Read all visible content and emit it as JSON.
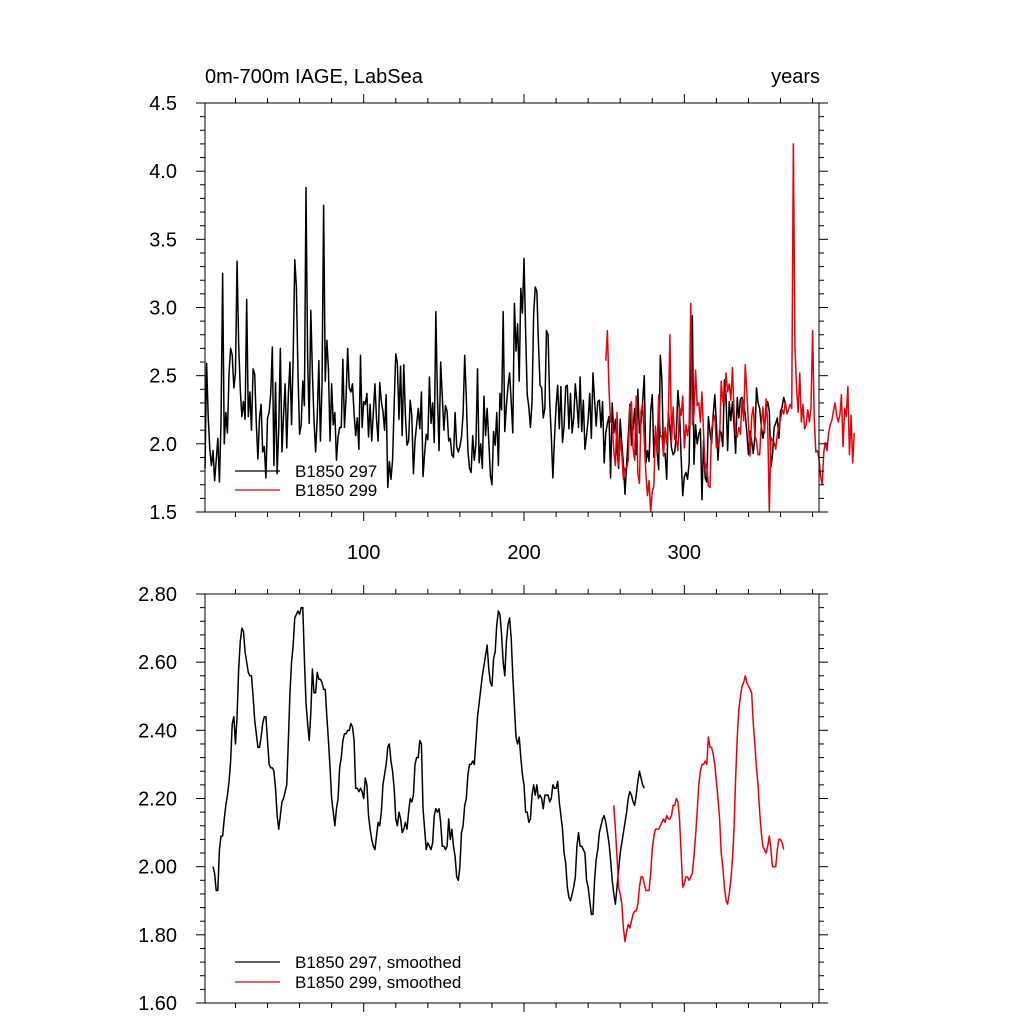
{
  "colors": {
    "run297": "#000000",
    "run299": "#e8000b",
    "frame": "#000000",
    "background": "#ffffff"
  },
  "chart_data": [
    {
      "type": "line",
      "title_left": "0m-700m IAGE, LabSea",
      "title_right": "years",
      "xlim": [
        1,
        384
      ],
      "ylim": [
        1.5,
        4.5
      ],
      "x_ticks": [
        100,
        200,
        300
      ],
      "x_tick_labels": [
        "100",
        "200",
        "300"
      ],
      "y_ticks": [
        1.5,
        2.0,
        2.5,
        3.0,
        3.5,
        4.0,
        4.5
      ],
      "y_tick_labels": [
        "1.5",
        "2.0",
        "2.5",
        "3.0",
        "3.5",
        "4.0",
        "4.5"
      ],
      "legend_position": "bottom-left",
      "series": [
        {
          "name": "B1850 297",
          "color": "#000000",
          "x_start": 1,
          "values": [
            1.82,
            2.59,
            2.2,
            1.96,
            1.84,
            1.95,
            1.73,
            1.88,
            2.04,
            1.72,
            2.17,
            3.25,
            2.0,
            2.23,
            2.08,
            2.52,
            2.7,
            2.65,
            2.41,
            2.52,
            3.34,
            2.73,
            2.4,
            2.2,
            2.31,
            2.18,
            3.06,
            2.2,
            2.38,
            2.1,
            2.55,
            2.51,
            2.15,
            1.89,
            2.19,
            2.29,
            1.94,
            1.98,
            1.75,
            2.19,
            2.23,
            2.37,
            2.71,
            1.84,
            2.45,
            1.78,
            2.11,
            2.7,
            1.94,
            2.21,
            2.44,
            1.97,
            2.36,
            2.6,
            2.14,
            2.64,
            3.35,
            3.15,
            2.52,
            2.07,
            2.14,
            2.46,
            2.28,
            3.88,
            2.63,
            2.15,
            2.98,
            2.52,
            2.17,
            1.94,
            2.19,
            2.61,
            2.02,
            2.44,
            3.75,
            2.46,
            2.76,
            2.55,
            2.02,
            2.44,
            2.14,
            2.23,
            1.88,
            2.05,
            2.12,
            2.12,
            2.62,
            2.12,
            2.34,
            2.7,
            2.41,
            2.38,
            2.44,
            2.22,
            2.06,
            2.19,
            1.96,
            2.65,
            2.12,
            2.31,
            2.29,
            2.37,
            2.05,
            2.29,
            2.02,
            2.23,
            2.44,
            2.18,
            2.02,
            2.45,
            2.31,
            2.24,
            2.1,
            2.36,
            1.68,
            1.87,
            1.74,
            1.88,
            2.29,
            2.66,
            2.59,
            2.18,
            2.57,
            2.06,
            2.58,
            2.21,
            1.99,
            2.02,
            2.32,
            2.21,
            1.78,
            2.02,
            2.14,
            2.26,
            2.11,
            2.38,
            1.76,
            1.93,
            2.07,
            2.03,
            2.49,
            2.15,
            2.3,
            2.01,
            2.97,
            2.34,
            1.95,
            2.6,
            2.35,
            2.1,
            2.28,
            2.24,
            2.02,
            2.04,
            1.92,
            1.9,
            2.23,
            1.98,
            1.94,
            1.98,
            2.05,
            2.22,
            2.65,
            2.34,
            1.95,
            1.82,
            1.79,
            2.06,
            1.88,
            2.0,
            2.55,
            1.86,
            2.0,
            1.82,
            2.35,
            2.06,
            2.26,
            2.03,
            1.77,
            1.7,
            2.09,
            1.99,
            2.23,
            1.84,
            2.37,
            2.25,
            2.97,
            2.09,
            2.28,
            2.42,
            2.52,
            2.31,
            2.08,
            3.03,
            2.68,
            2.88,
            2.46,
            3.14,
            2.96,
            3.36,
            2.82,
            2.36,
            2.27,
            2.12,
            2.31,
            2.95,
            3.15,
            3.12,
            2.74,
            2.43,
            2.41,
            2.19,
            2.26,
            2.83,
            2.8,
            2.31,
            2.06,
            1.75,
            2.04,
            2.28,
            2.43,
            2.11,
            2.42,
            2.01,
            2.13,
            2.42,
            2.43,
            2.11,
            2.37,
            2.08,
            2.19,
            2.44,
            2.3,
            2.12,
            2.49,
            2.09,
            2.32,
            1.96,
            2.06,
            2.18,
            2.37,
            2.04,
            2.52,
            2.32,
            2.13,
            2.31,
            2.32,
            2.12,
            2.31,
            1.86,
            2.08,
            2.15,
            2.2,
            1.75,
            2.3,
            2.08,
            2.18,
            1.96,
            1.82,
            2.18,
            2.0,
            1.85,
            1.63,
            1.85,
            2.05,
            2.29,
            1.99,
            2.11,
            2.26,
            1.92,
            2.4,
            2.08,
            2.16,
            2.31,
            2.5,
            1.86,
            1.95,
            1.87,
            2.24,
            2.36,
            1.9,
            2.11,
            1.94,
            1.81,
            2.65,
            2.47,
            1.92,
            1.93,
            1.74,
            2.23,
            2.11,
            1.97,
            1.92,
            1.94,
            2.07,
            2.39,
            2.24,
            1.9,
            1.62,
            1.76,
            1.79,
            1.74,
            1.86,
            2.57,
            2.94,
            1.85,
            2.14,
            2.0,
            2.07,
            2.11,
            1.59,
            2.03,
            1.75,
            1.72,
            2.2,
            2.08,
            2.0,
            2.21,
            2.36,
            2.15,
            1.88,
            2.1,
            2.08,
            1.98,
            2.47,
            2.35,
            1.95,
            2.31,
            2.17,
            2.31,
            2.14,
            1.93,
            2.34,
            2.19,
            2.33,
            2.34,
            2.28,
            2.22,
            2.08,
            1.92,
            2.09,
            2.02,
            1.93,
            2.05,
            2.41,
            2.3,
            2.26,
            2.13,
            2.04,
            2.12,
            2.25,
            2.31,
            2.24,
            1.83,
            1.92,
            2.12,
            2.15,
            2.19,
            2.04,
            2.24,
            2.27,
            2.34,
            2.29
          ]
        },
        {
          "name": "B1850 299",
          "color": "#e8000b",
          "x_start": 251,
          "values": [
            2.61,
            2.83,
            2.4,
            2.16,
            2.15,
            1.95,
            1.84,
            2.23,
            1.84,
            2.03,
            1.93,
            1.74,
            1.82,
            1.82,
            1.88,
            2.27,
            2.31,
            1.97,
            1.88,
            2.35,
            1.78,
            1.71,
            2.24,
            2.3,
            2.03,
            1.78,
            1.62,
            1.73,
            1.5,
            1.65,
            1.69,
            2.13,
            1.93,
            2.36,
            2.05,
            2.06,
            1.91,
            2.12,
            2.0,
            2.18,
            2.8,
            2.01,
            2.27,
            2.03,
            2.03,
            1.95,
            2.27,
            2.21,
            2.35,
            1.97,
            2.14,
            2.06,
            2.14,
            3.03,
            2.14,
            2.22,
            2.54,
            2.28,
            2.3,
            2.16,
            2.38,
            2.08,
            1.81,
            1.86,
            1.69,
            1.68,
            2.11,
            2.17,
            2.21,
            1.97,
            1.98,
            2.02,
            2.46,
            2.31,
            2.29,
            2.52,
            2.38,
            2.44,
            2.32,
            2.56,
            2.23,
            2.07,
            2.05,
            2.12,
            2.07,
            2.33,
            2.17,
            2.58,
            2.38,
            2.15,
            1.91,
            2.2,
            2.27,
            2.06,
            2.02,
            1.92,
            1.92,
            2.14,
            2.27,
            2.08,
            2.33,
            2.14,
            1.5,
            2.05,
            2.02,
            2.01,
            1.96,
            2.07,
            2.13,
            2.18,
            2.25,
            2.22,
            2.31,
            2.22,
            2.25,
            2.29,
            2.26,
            4.2,
            2.71,
            2.41,
            2.23,
            2.52,
            2.16,
            2.29,
            2.11,
            2.14,
            2.25,
            2.16,
            2.26,
            2.83,
            2.2,
            1.94,
            1.95,
            1.89,
            1.76,
            1.7,
            1.94,
            2.01,
            1.95,
            2.08,
            2.14,
            2.17,
            2.24,
            2.3,
            2.21,
            2.16,
            2.21,
            2.36,
            1.98,
            2.26,
            2.2,
            2.42,
            1.92,
            2.21,
            1.86,
            2.08
          ]
        }
      ]
    },
    {
      "type": "line",
      "xlim": [
        1,
        384
      ],
      "ylim": [
        1.6,
        2.8
      ],
      "x_ticks": [
        100,
        200,
        300
      ],
      "x_tick_labels": [],
      "y_ticks": [
        1.6,
        1.8,
        2.0,
        2.2,
        2.4,
        2.6,
        2.8
      ],
      "y_tick_labels": [
        "1.60",
        "1.80",
        "2.00",
        "2.20",
        "2.40",
        "2.60",
        "2.80"
      ],
      "legend_position": "bottom-left",
      "series": [
        {
          "name": "B1850 297, smoothed",
          "color": "#000000",
          "x_start": 6,
          "values": [
            2.0,
            1.98,
            1.93,
            1.93,
            2.05,
            2.09,
            2.09,
            2.14,
            2.18,
            2.21,
            2.25,
            2.31,
            2.42,
            2.44,
            2.36,
            2.44,
            2.58,
            2.66,
            2.7,
            2.69,
            2.63,
            2.6,
            2.57,
            2.56,
            2.56,
            2.5,
            2.43,
            2.39,
            2.35,
            2.35,
            2.38,
            2.42,
            2.44,
            2.44,
            2.37,
            2.3,
            2.29,
            2.29,
            2.28,
            2.23,
            2.15,
            2.11,
            2.15,
            2.19,
            2.2,
            2.22,
            2.24,
            2.37,
            2.51,
            2.6,
            2.65,
            2.73,
            2.74,
            2.75,
            2.74,
            2.76,
            2.76,
            2.61,
            2.48,
            2.42,
            2.37,
            2.45,
            2.58,
            2.51,
            2.51,
            2.57,
            2.55,
            2.55,
            2.54,
            2.52,
            2.52,
            2.44,
            2.37,
            2.29,
            2.2,
            2.16,
            2.12,
            2.17,
            2.2,
            2.29,
            2.32,
            2.37,
            2.39,
            2.39,
            2.4,
            2.4,
            2.42,
            2.41,
            2.37,
            2.23,
            2.23,
            2.22,
            2.23,
            2.22,
            2.2,
            2.26,
            2.24,
            2.15,
            2.11,
            2.08,
            2.06,
            2.05,
            2.09,
            2.13,
            2.12,
            2.16,
            2.24,
            2.27,
            2.3,
            2.35,
            2.36,
            2.31,
            2.28,
            2.23,
            2.14,
            2.12,
            2.16,
            2.14,
            2.1,
            2.11,
            2.13,
            2.11,
            2.16,
            2.2,
            2.19,
            2.21,
            2.3,
            2.32,
            2.32,
            2.37,
            2.36,
            2.17,
            2.11,
            2.05,
            2.07,
            2.06,
            2.05,
            2.07,
            2.15,
            2.17,
            2.16,
            2.17,
            2.13,
            2.06,
            2.06,
            2.05,
            2.06,
            2.14,
            2.08,
            2.11,
            2.06,
            2.03,
            1.97,
            1.96,
            2.0,
            2.1,
            2.12,
            2.18,
            2.2,
            2.27,
            2.3,
            2.3,
            2.31,
            2.3,
            2.37,
            2.44,
            2.48,
            2.52,
            2.56,
            2.59,
            2.62,
            2.65,
            2.58,
            2.54,
            2.53,
            2.61,
            2.63,
            2.71,
            2.75,
            2.74,
            2.68,
            2.6,
            2.56,
            2.66,
            2.71,
            2.73,
            2.67,
            2.56,
            2.47,
            2.38,
            2.36,
            2.38,
            2.32,
            2.27,
            2.24,
            2.16,
            2.16,
            2.13,
            2.14,
            2.21,
            2.24,
            2.21,
            2.24,
            2.2,
            2.21,
            2.2,
            2.17,
            2.21,
            2.21,
            2.21,
            2.19,
            2.2,
            2.24,
            2.23,
            2.23,
            2.25,
            2.19,
            2.15,
            2.11,
            2.04,
            2.01,
            1.94,
            1.91,
            1.9,
            1.92,
            1.94,
            1.97,
            2.06,
            2.1,
            2.06,
            2.06,
            2.05,
            2.04,
            1.96,
            1.94,
            1.9,
            1.86,
            1.86,
            1.96,
            2.02,
            2.05,
            2.1,
            2.12,
            2.14,
            2.15,
            2.13,
            2.1,
            2.07,
            2.02,
            1.96,
            1.92,
            1.89,
            1.94,
            1.99,
            2.04,
            2.07,
            2.1,
            2.13,
            2.16,
            2.2,
            2.22,
            2.21,
            2.19,
            2.18,
            2.21,
            2.25,
            2.28,
            2.26,
            2.24,
            2.23
          ]
        },
        {
          "name": "B1850 299, smoothed",
          "color": "#e8000b",
          "x_start": 256,
          "values": [
            2.18,
            2.11,
            2.03,
            1.94,
            1.92,
            1.89,
            1.82,
            1.78,
            1.81,
            1.83,
            1.82,
            1.84,
            1.86,
            1.87,
            1.87,
            1.89,
            1.94,
            1.97,
            1.97,
            1.95,
            1.93,
            1.93,
            1.93,
            1.98,
            2.05,
            2.09,
            2.11,
            2.11,
            2.11,
            2.12,
            2.13,
            2.14,
            2.13,
            2.15,
            2.14,
            2.14,
            2.15,
            2.18,
            2.18,
            2.2,
            2.19,
            2.14,
            2.04,
            1.94,
            1.95,
            1.97,
            1.97,
            1.96,
            1.97,
            1.98,
            2.03,
            2.09,
            2.16,
            2.24,
            2.28,
            2.3,
            2.3,
            2.31,
            2.3,
            2.38,
            2.35,
            2.35,
            2.33,
            2.3,
            2.25,
            2.2,
            2.14,
            2.04,
            2.0,
            1.94,
            1.9,
            1.89,
            1.92,
            1.96,
            2.02,
            2.11,
            2.26,
            2.38,
            2.46,
            2.5,
            2.53,
            2.54,
            2.56,
            2.54,
            2.53,
            2.52,
            2.51,
            2.42,
            2.36,
            2.29,
            2.24,
            2.16,
            2.1,
            2.06,
            2.05,
            2.04,
            2.06,
            2.09,
            2.05,
            2.0,
            2.0,
            2.0,
            2.05,
            2.08,
            2.08,
            2.07,
            2.05
          ]
        }
      ]
    }
  ]
}
